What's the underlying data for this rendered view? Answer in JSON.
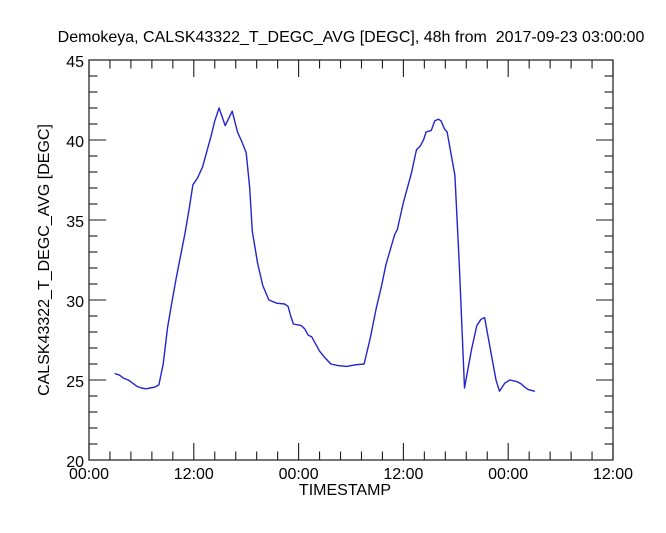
{
  "title": "Demokeya, CALSK43322_T_DEGC_AVG [DEGC], 48h from  2017-09-23 03:00:00",
  "chart_data": {
    "type": "line",
    "title": "Demokeya, CALSK43322_T_DEGC_AVG [DEGC], 48h from  2017-09-23 03:00:00",
    "xlabel": "TIMESTAMP",
    "ylabel": "CALSK43322_T_DEGC_AVG [DEGC]",
    "x_tick_labels": [
      "00:00",
      "12:00",
      "00:00",
      "12:00",
      "00:00",
      "12:00"
    ],
    "x_major_ticks_hours": [
      0,
      12,
      24,
      36,
      48,
      60
    ],
    "x_minor_divisions": 5,
    "xlim_hours": [
      0,
      60
    ],
    "y_major_ticks": [
      20,
      25,
      30,
      35,
      40,
      45
    ],
    "y_minor_step": 1,
    "ylim": [
      20,
      45
    ],
    "grid": false,
    "legend": false,
    "line_color": "#2424cd",
    "axis_color": "#1a1a1a",
    "series": [
      {
        "name": "CALSK43322_T_DEGC_AVG [DEGC]",
        "color": "#2424cd",
        "points_hours_degc": [
          [
            3,
            25.4
          ],
          [
            3.5,
            25.3
          ],
          [
            4,
            25.1
          ],
          [
            4.5,
            25.0
          ],
          [
            5,
            24.8
          ],
          [
            5.5,
            24.6
          ],
          [
            6,
            24.5
          ],
          [
            6.5,
            24.45
          ],
          [
            7,
            24.5
          ],
          [
            7.5,
            24.55
          ],
          [
            8,
            24.7
          ],
          [
            8.5,
            26.0
          ],
          [
            9,
            28.3
          ],
          [
            9.5,
            29.9
          ],
          [
            10,
            31.4
          ],
          [
            10.5,
            32.8
          ],
          [
            11,
            34.2
          ],
          [
            11.5,
            35.8
          ],
          [
            11.9,
            37.2
          ],
          [
            12.4,
            37.6
          ],
          [
            13,
            38.3
          ],
          [
            13.5,
            39.3
          ],
          [
            14,
            40.3
          ],
          [
            14.4,
            41.2
          ],
          [
            14.9,
            42.0
          ],
          [
            15.6,
            40.9
          ],
          [
            16.4,
            41.8
          ],
          [
            17,
            40.5
          ],
          [
            17.5,
            39.9
          ],
          [
            18,
            39.2
          ],
          [
            18.4,
            37.0
          ],
          [
            18.7,
            34.3
          ],
          [
            19.3,
            32.3
          ],
          [
            19.9,
            30.9
          ],
          [
            20.6,
            30.0
          ],
          [
            21.5,
            29.8
          ],
          [
            22.4,
            29.75
          ],
          [
            22.8,
            29.6
          ],
          [
            23.1,
            29.0
          ],
          [
            23.4,
            28.5
          ],
          [
            24.3,
            28.4
          ],
          [
            24.7,
            28.2
          ],
          [
            25.1,
            27.8
          ],
          [
            25.5,
            27.7
          ],
          [
            26.4,
            26.8
          ],
          [
            27,
            26.4
          ],
          [
            27.7,
            26.0
          ],
          [
            28.5,
            25.9
          ],
          [
            29.5,
            25.85
          ],
          [
            30.5,
            25.95
          ],
          [
            31.5,
            26.0
          ],
          [
            32.2,
            27.6
          ],
          [
            32.9,
            29.5
          ],
          [
            33.5,
            30.9
          ],
          [
            34,
            32.2
          ],
          [
            35,
            34.1
          ],
          [
            35.3,
            34.4
          ],
          [
            36,
            36.1
          ],
          [
            36.9,
            37.9
          ],
          [
            37.5,
            39.4
          ],
          [
            37.9,
            39.6
          ],
          [
            38.3,
            40.0
          ],
          [
            38.6,
            40.5
          ],
          [
            39.2,
            40.6
          ],
          [
            39.6,
            41.2
          ],
          [
            40,
            41.3
          ],
          [
            40.3,
            41.2
          ],
          [
            40.7,
            40.7
          ],
          [
            41,
            40.5
          ],
          [
            41.9,
            37.8
          ],
          [
            42.4,
            32.2
          ],
          [
            43,
            24.5
          ],
          [
            43.8,
            26.9
          ],
          [
            44.4,
            28.4
          ],
          [
            44.9,
            28.8
          ],
          [
            45.3,
            28.9
          ],
          [
            46.1,
            26.5
          ],
          [
            46.6,
            25.0
          ],
          [
            47,
            24.3
          ],
          [
            47.6,
            24.8
          ],
          [
            48.2,
            25.0
          ],
          [
            49,
            24.9
          ],
          [
            49.5,
            24.75
          ],
          [
            49.9,
            24.55
          ],
          [
            50.3,
            24.4
          ],
          [
            51,
            24.3
          ]
        ]
      }
    ]
  }
}
